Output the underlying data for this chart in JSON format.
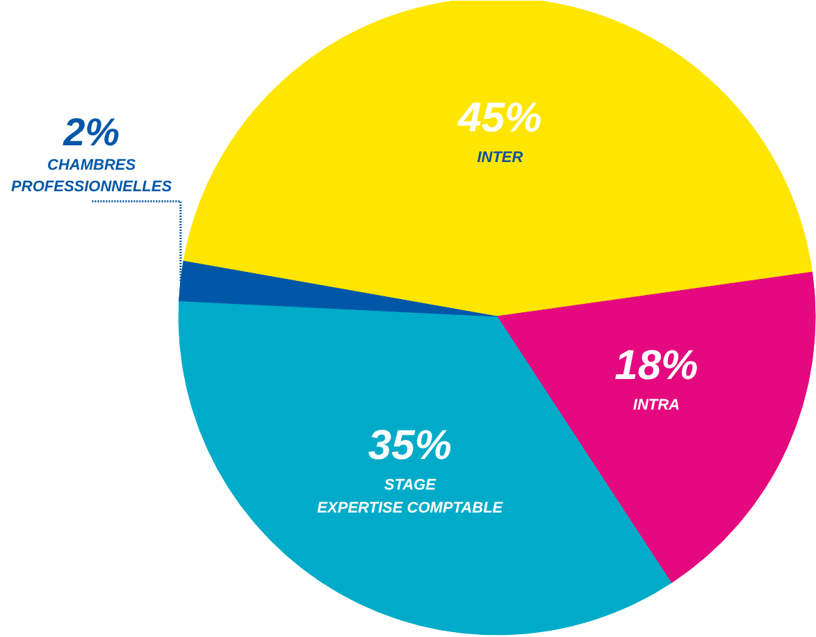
{
  "chart_data": {
    "type": "pie",
    "categories": [
      "INTER",
      "INTRA",
      "STAGE\nEXPERTISE COMPTABLE",
      "CHAMBRES\nPROFESSIONNELLES"
    ],
    "values": [
      45,
      18,
      35,
      2
    ],
    "colors": [
      "#ffe600",
      "#e5097f",
      "#00abc9",
      "#0057a8"
    ],
    "value_labels": [
      "45%",
      "18%",
      "35%",
      "2%"
    ]
  }
}
